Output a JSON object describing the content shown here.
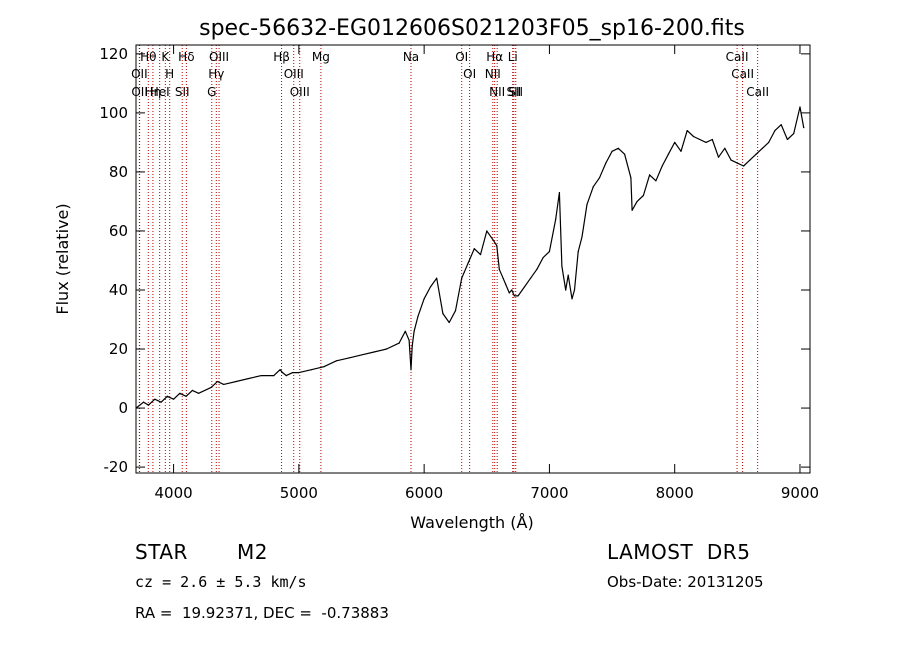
{
  "chart_data": {
    "type": "line",
    "title": "spec-56632-EG012606S021203F05_sp16-200.fits",
    "xlabel": "Wavelength (Å)",
    "ylabel": "Flux (relative)",
    "xlim": [
      3700,
      9080
    ],
    "ylim": [
      -22,
      123
    ],
    "xticks": [
      4000,
      5000,
      6000,
      7000,
      8000,
      9000
    ],
    "yticks": [
      -20,
      0,
      20,
      40,
      60,
      80,
      100,
      120
    ],
    "grid": false,
    "series": [
      {
        "color": "#000000",
        "x": [
          3700,
          3760,
          3800,
          3850,
          3900,
          3950,
          4000,
          4050,
          4100,
          4150,
          4200,
          4300,
          4350,
          4400,
          4500,
          4600,
          4700,
          4800,
          4850,
          4870,
          4900,
          4950,
          5000,
          5100,
          5200,
          5300,
          5400,
          5500,
          5600,
          5700,
          5800,
          5850,
          5880,
          5895,
          5905,
          5920,
          5950,
          6000,
          6050,
          6100,
          6150,
          6200,
          6250,
          6300,
          6320,
          6350,
          6400,
          6450,
          6500,
          6550,
          6580,
          6600,
          6630,
          6650,
          6680,
          6700,
          6720,
          6750,
          6800,
          6850,
          6900,
          6950,
          7000,
          7050,
          7080,
          7100,
          7130,
          7150,
          7180,
          7200,
          7230,
          7260,
          7300,
          7350,
          7400,
          7450,
          7500,
          7550,
          7600,
          7650,
          7660,
          7700,
          7750,
          7800,
          7850,
          7900,
          7950,
          8000,
          8050,
          8100,
          8150,
          8200,
          8250,
          8300,
          8350,
          8400,
          8450,
          8500,
          8550,
          8600,
          8650,
          8700,
          8750,
          8800,
          8850,
          8900,
          8950,
          9000,
          9030
        ],
        "values": [
          0,
          2,
          1,
          3,
          2,
          4,
          3,
          5,
          4,
          6,
          5,
          7,
          9,
          8,
          9,
          10,
          11,
          11,
          13,
          12,
          11,
          12,
          12,
          13,
          14,
          16,
          17,
          18,
          19,
          20,
          22,
          26,
          23,
          13,
          21,
          26,
          31,
          37,
          41,
          44,
          32,
          29,
          33,
          44,
          46,
          49,
          54,
          52,
          60,
          57,
          55,
          47,
          44,
          42,
          39,
          40,
          38,
          38,
          41,
          44,
          47,
          51,
          53,
          64,
          73,
          48,
          40,
          45,
          37,
          40,
          53,
          58,
          69,
          75,
          78,
          83,
          87,
          88,
          86,
          78,
          67,
          70,
          72,
          79,
          77,
          82,
          86,
          90,
          87,
          94,
          92,
          91,
          90,
          91,
          85,
          88,
          84,
          83,
          82,
          84,
          86,
          88,
          90,
          94,
          96,
          91,
          93,
          102,
          95
        ]
      }
    ],
    "lines": [
      {
        "label": "Hθ",
        "x": 3798
      },
      {
        "label": "OII",
        "x": 3727
      },
      {
        "label": "OII",
        "x": 3729
      },
      {
        "label": "Hη",
        "x": 3835
      },
      {
        "label": "K",
        "x": 3934
      },
      {
        "label": "HeI",
        "x": 3889
      },
      {
        "label": "H",
        "x": 3969
      },
      {
        "label": "Hδ",
        "x": 4102
      },
      {
        "label": "SII",
        "x": 4069
      },
      {
        "label": "OIII",
        "x": 4363
      },
      {
        "label": "Hγ",
        "x": 4341
      },
      {
        "label": "G",
        "x": 4305
      },
      {
        "label": "Hβ",
        "x": 4862
      },
      {
        "label": "OIII",
        "x": 4959
      },
      {
        "label": "OIII",
        "x": 5007
      },
      {
        "label": "Mg",
        "x": 5176
      },
      {
        "label": "Na",
        "x": 5895
      },
      {
        "label": "OI",
        "x": 6300
      },
      {
        "label": "OI",
        "x": 6363
      },
      {
        "label": "Hα",
        "x": 6563
      },
      {
        "label": "NII",
        "x": 6548
      },
      {
        "label": "NII",
        "x": 6583
      },
      {
        "label": "SII",
        "x": 6716
      },
      {
        "label": "Li",
        "x": 6707
      },
      {
        "label": "SII",
        "x": 6731
      },
      {
        "label": "CaII",
        "x": 8498
      },
      {
        "label": "CaII",
        "x": 8542
      },
      {
        "label": "CaII",
        "x": 8662
      }
    ]
  },
  "info": {
    "class": "STAR",
    "subclass": "M2",
    "redshift": "cz = 2.6 ± 5.3 km/s",
    "coords": "RA =  19.92371, DEC =  -0.73883",
    "survey": "LAMOST  DR5",
    "obs_date": "Obs-Date: 20131205"
  }
}
